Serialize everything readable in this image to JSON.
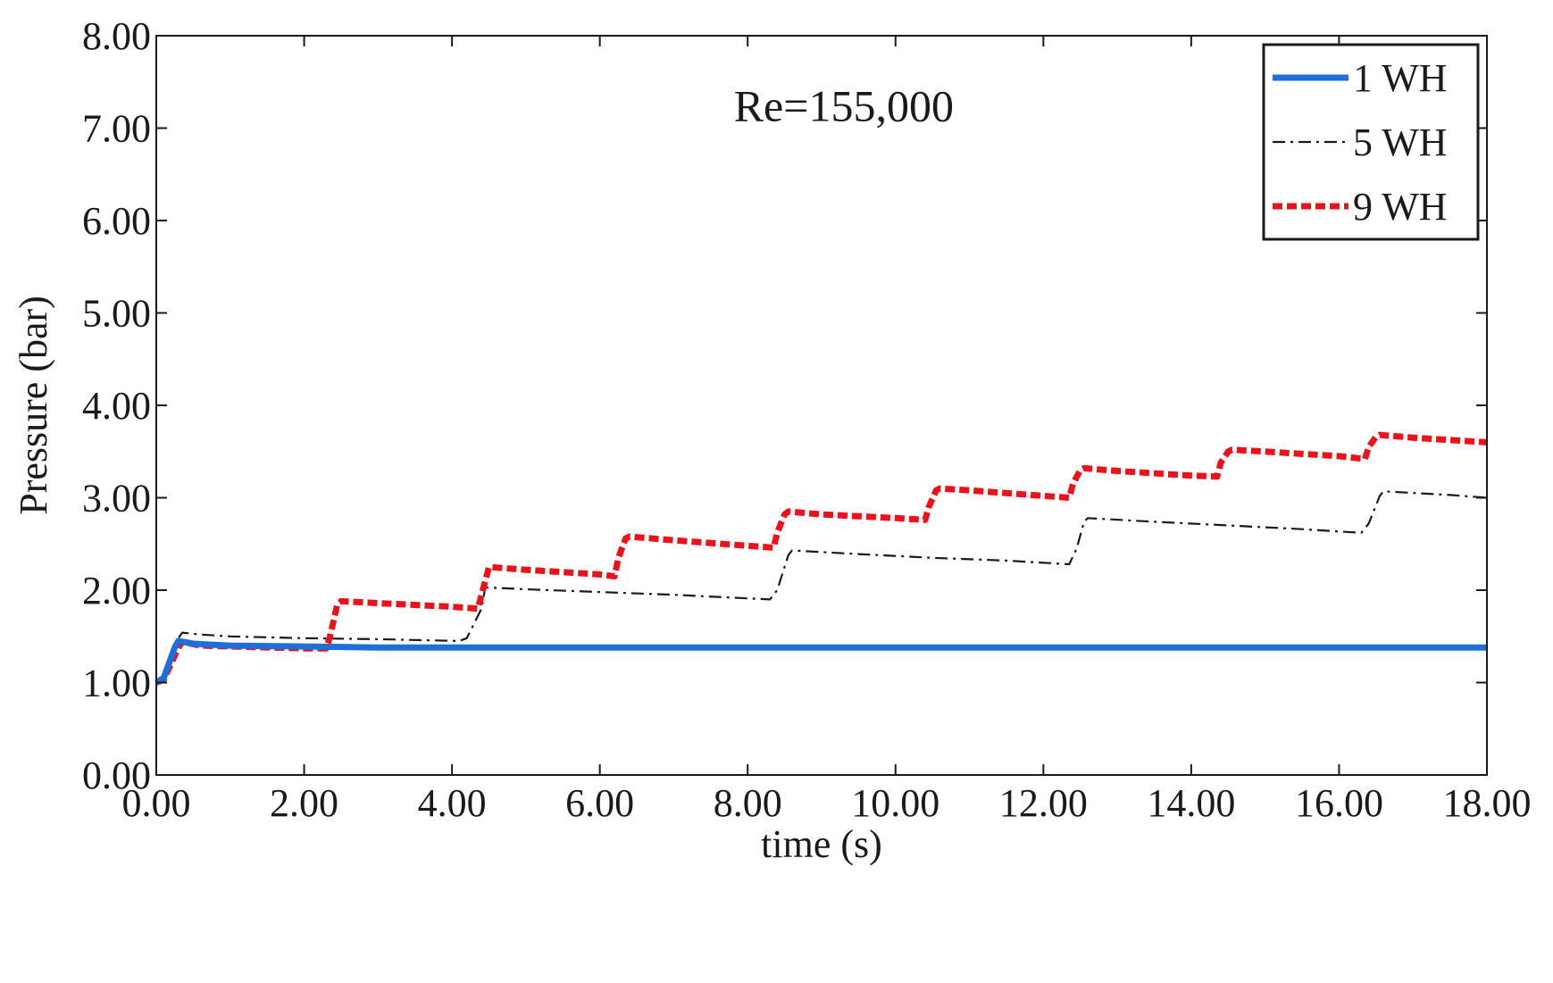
{
  "chart_data": {
    "type": "line",
    "title": "",
    "xlabel": "time (s)",
    "ylabel": "Pressure (bar)",
    "xlim": [
      0,
      18
    ],
    "ylim": [
      0,
      8
    ],
    "xticks": [
      "0.00",
      "2.00",
      "4.00",
      "6.00",
      "8.00",
      "10.00",
      "12.00",
      "14.00",
      "16.00",
      "18.00"
    ],
    "yticks": [
      "0.00",
      "1.00",
      "2.00",
      "3.00",
      "4.00",
      "5.00",
      "6.00",
      "7.00",
      "8.00"
    ],
    "grid": false,
    "legend_position": "top-right",
    "annotations": [
      {
        "text": "Re=155,000",
        "x": 9.3,
        "y": 7.25
      }
    ],
    "series": [
      {
        "name": "1 WH",
        "color": "#1f6fd6",
        "style": "solid",
        "x": [
          0.0,
          0.1,
          0.25,
          0.3,
          0.5,
          1.0,
          2.0,
          3.0,
          4.0,
          18.0
        ],
        "y": [
          1.0,
          1.05,
          1.38,
          1.45,
          1.42,
          1.4,
          1.39,
          1.38,
          1.38,
          1.38
        ]
      },
      {
        "name": "5 WH",
        "color": "#1a1a1a",
        "style": "dashdot",
        "x": [
          0.0,
          0.1,
          0.3,
          0.35,
          0.6,
          1.0,
          2.0,
          3.0,
          4.1,
          4.2,
          4.4,
          4.45,
          5.0,
          6.0,
          7.0,
          8.3,
          8.4,
          8.55,
          8.6,
          9.5,
          10.5,
          11.5,
          12.35,
          12.45,
          12.55,
          12.6,
          13.5,
          14.5,
          15.5,
          16.3,
          16.4,
          16.55,
          16.6,
          17.5,
          18.0
        ],
        "y": [
          1.0,
          1.05,
          1.48,
          1.54,
          1.52,
          1.5,
          1.48,
          1.47,
          1.45,
          1.48,
          1.8,
          2.03,
          2.01,
          1.98,
          1.95,
          1.9,
          2.0,
          2.38,
          2.43,
          2.39,
          2.35,
          2.32,
          2.28,
          2.45,
          2.74,
          2.78,
          2.74,
          2.7,
          2.66,
          2.62,
          2.72,
          3.02,
          3.07,
          3.03,
          3.0
        ]
      },
      {
        "name": "9 WH",
        "color": "#e8141c",
        "style": "dashed",
        "x": [
          0.0,
          0.1,
          0.3,
          0.35,
          0.6,
          1.0,
          2.0,
          2.3,
          2.35,
          2.45,
          2.5,
          3.0,
          4.0,
          4.35,
          4.45,
          4.5,
          5.0,
          6.0,
          6.2,
          6.25,
          6.35,
          6.4,
          7.0,
          8.0,
          8.35,
          8.4,
          8.5,
          8.55,
          9.0,
          10.0,
          10.4,
          10.45,
          10.55,
          10.6,
          11.0,
          12.0,
          12.35,
          12.4,
          12.5,
          12.55,
          13.0,
          14.0,
          14.35,
          14.4,
          14.5,
          14.55,
          15.0,
          16.0,
          16.35,
          16.4,
          16.5,
          16.55,
          17.0,
          18.0
        ],
        "y": [
          1.0,
          1.03,
          1.38,
          1.44,
          1.4,
          1.39,
          1.37,
          1.37,
          1.5,
          1.85,
          1.88,
          1.86,
          1.82,
          1.8,
          2.1,
          2.25,
          2.22,
          2.17,
          2.15,
          2.35,
          2.56,
          2.58,
          2.54,
          2.48,
          2.46,
          2.62,
          2.82,
          2.85,
          2.82,
          2.78,
          2.76,
          2.9,
          3.08,
          3.1,
          3.08,
          3.02,
          3.0,
          3.15,
          3.3,
          3.32,
          3.29,
          3.24,
          3.23,
          3.38,
          3.5,
          3.52,
          3.5,
          3.45,
          3.42,
          3.55,
          3.66,
          3.68,
          3.65,
          3.6
        ]
      }
    ]
  }
}
